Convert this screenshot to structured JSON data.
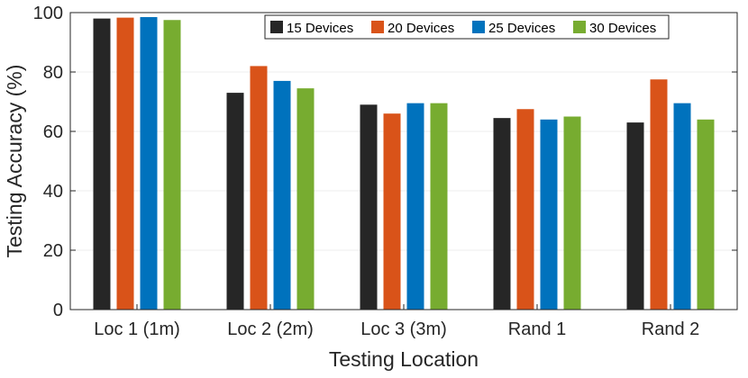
{
  "chart_data": {
    "type": "bar",
    "title": "",
    "xlabel": "Testing Location",
    "ylabel": "Testing Accuracy (%)",
    "categories": [
      "Loc 1 (1m)",
      "Loc 2 (2m)",
      "Loc 3 (3m)",
      "Rand 1",
      "Rand 2"
    ],
    "series": [
      {
        "name": "15 Devices",
        "color": "#262626",
        "values": [
          98,
          73,
          69,
          64.5,
          63
        ]
      },
      {
        "name": "20 Devices",
        "color": "#D95319",
        "values": [
          98.3,
          82,
          66,
          67.5,
          77.5
        ]
      },
      {
        "name": "25 Devices",
        "color": "#0072BD",
        "values": [
          98.5,
          77,
          69.5,
          64,
          69.5
        ]
      },
      {
        "name": "30 Devices",
        "color": "#77AC30",
        "values": [
          97.5,
          74.5,
          69.5,
          65,
          64
        ]
      }
    ],
    "ylim": [
      0,
      100
    ],
    "yticks": [
      0,
      20,
      40,
      60,
      80,
      100
    ],
    "grid": true,
    "legend_position": "top-right",
    "legend_orientation": "horizontal"
  }
}
